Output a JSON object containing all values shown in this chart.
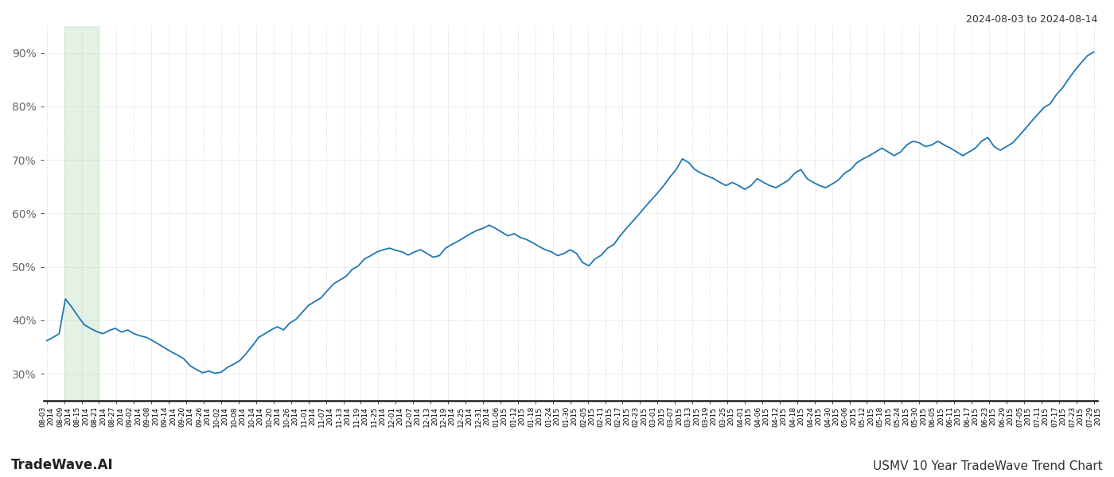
{
  "title_top_right": "2024-08-03 to 2024-08-14",
  "title_bottom_left": "TradeWave.AI",
  "title_bottom_right": "USMV 10 Year TradeWave Trend Chart",
  "line_color": "#1f77b4",
  "line_width": 1.3,
  "highlight_color": "#c8e6c9",
  "highlight_alpha": 0.5,
  "y_ticks": [
    30,
    40,
    50,
    60,
    70,
    80,
    90
  ],
  "ylim": [
    25,
    95
  ],
  "background_color": "#ffffff",
  "grid_color": "#cccccc",
  "x_tick_labels": [
    "08-03",
    "08-09",
    "08-15",
    "08-21",
    "08-27",
    "09-02",
    "09-08",
    "09-14",
    "09-20",
    "09-26",
    "10-02",
    "10-08",
    "10-14",
    "10-20",
    "10-26",
    "11-01",
    "11-07",
    "11-13",
    "11-19",
    "11-25",
    "12-01",
    "12-07",
    "12-13",
    "12-19",
    "12-25",
    "12-31",
    "01-06",
    "01-12",
    "01-18",
    "01-24",
    "01-30",
    "02-05",
    "02-11",
    "02-17",
    "02-23",
    "03-01",
    "03-07",
    "03-13",
    "03-19",
    "03-25",
    "04-01",
    "04-06",
    "04-12",
    "04-18",
    "04-24",
    "04-30",
    "05-06",
    "05-12",
    "05-18",
    "05-24",
    "05-30",
    "06-05",
    "06-11",
    "06-17",
    "06-23",
    "06-29",
    "07-05",
    "07-11",
    "07-17",
    "07-23",
    "07-29"
  ],
  "x_tick_years": [
    "2014",
    "2014",
    "2014",
    "2014",
    "2014",
    "2014",
    "2014",
    "2014",
    "2014",
    "2014",
    "2014",
    "2014",
    "2014",
    "2014",
    "2014",
    "2014",
    "2014",
    "2014",
    "2014",
    "2014",
    "2014",
    "2014",
    "2014",
    "2014",
    "2014",
    "2014",
    "2015",
    "2015",
    "2015",
    "2015",
    "2015",
    "2015",
    "2015",
    "2015",
    "2015",
    "2015",
    "2015",
    "2015",
    "2015",
    "2015",
    "2015",
    "2015",
    "2015",
    "2015",
    "2015",
    "2015",
    "2015",
    "2015",
    "2015",
    "2015",
    "2015",
    "2015",
    "2015",
    "2015",
    "2015",
    "2015",
    "2015",
    "2015",
    "2015",
    "2015",
    "2015"
  ],
  "values": [
    36.2,
    36.8,
    37.5,
    44.0,
    42.5,
    40.8,
    39.2,
    38.5,
    37.9,
    37.5,
    38.1,
    38.5,
    37.8,
    38.2,
    37.5,
    37.1,
    36.8,
    36.2,
    35.5,
    34.8,
    34.1,
    33.5,
    32.8,
    31.5,
    30.8,
    30.2,
    30.5,
    30.1,
    30.3,
    31.2,
    31.8,
    32.5,
    33.8,
    35.2,
    36.8,
    37.5,
    38.2,
    38.8,
    38.2,
    39.5,
    40.2,
    41.5,
    42.8,
    43.5,
    44.2,
    45.5,
    46.8,
    47.5,
    48.2,
    49.5,
    50.2,
    51.5,
    52.1,
    52.8,
    53.2,
    53.5,
    53.1,
    52.8,
    52.2,
    52.8,
    53.2,
    52.5,
    51.8,
    52.1,
    53.5,
    54.2,
    54.8,
    55.5,
    56.2,
    56.8,
    57.2,
    57.8,
    57.2,
    56.5,
    55.8,
    56.2,
    55.5,
    55.1,
    54.5,
    53.8,
    53.2,
    52.8,
    52.1,
    52.5,
    53.2,
    52.5,
    50.8,
    50.2,
    51.5,
    52.2,
    53.5,
    54.2,
    55.8,
    57.2,
    58.5,
    59.8,
    61.2,
    62.5,
    63.8,
    65.2,
    66.8,
    68.2,
    70.2,
    69.5,
    68.2,
    67.5,
    67.0,
    66.5,
    65.8,
    65.2,
    65.8,
    65.2,
    64.5,
    65.2,
    66.5,
    65.8,
    65.2,
    64.8,
    65.5,
    66.2,
    67.5,
    68.2,
    66.5,
    65.8,
    65.2,
    64.8,
    65.5,
    66.2,
    67.5,
    68.2,
    69.5,
    70.2,
    70.8,
    71.5,
    72.2,
    71.5,
    70.8,
    71.5,
    72.8,
    73.5,
    73.2,
    72.5,
    72.8,
    73.5,
    72.8,
    72.2,
    71.5,
    70.8,
    71.5,
    72.2,
    73.5,
    74.2,
    72.5,
    71.8,
    72.5,
    73.2,
    74.5,
    75.8,
    77.2,
    78.5,
    79.8,
    80.5,
    82.2,
    83.5,
    85.2,
    86.8,
    88.2,
    89.5,
    90.2
  ]
}
